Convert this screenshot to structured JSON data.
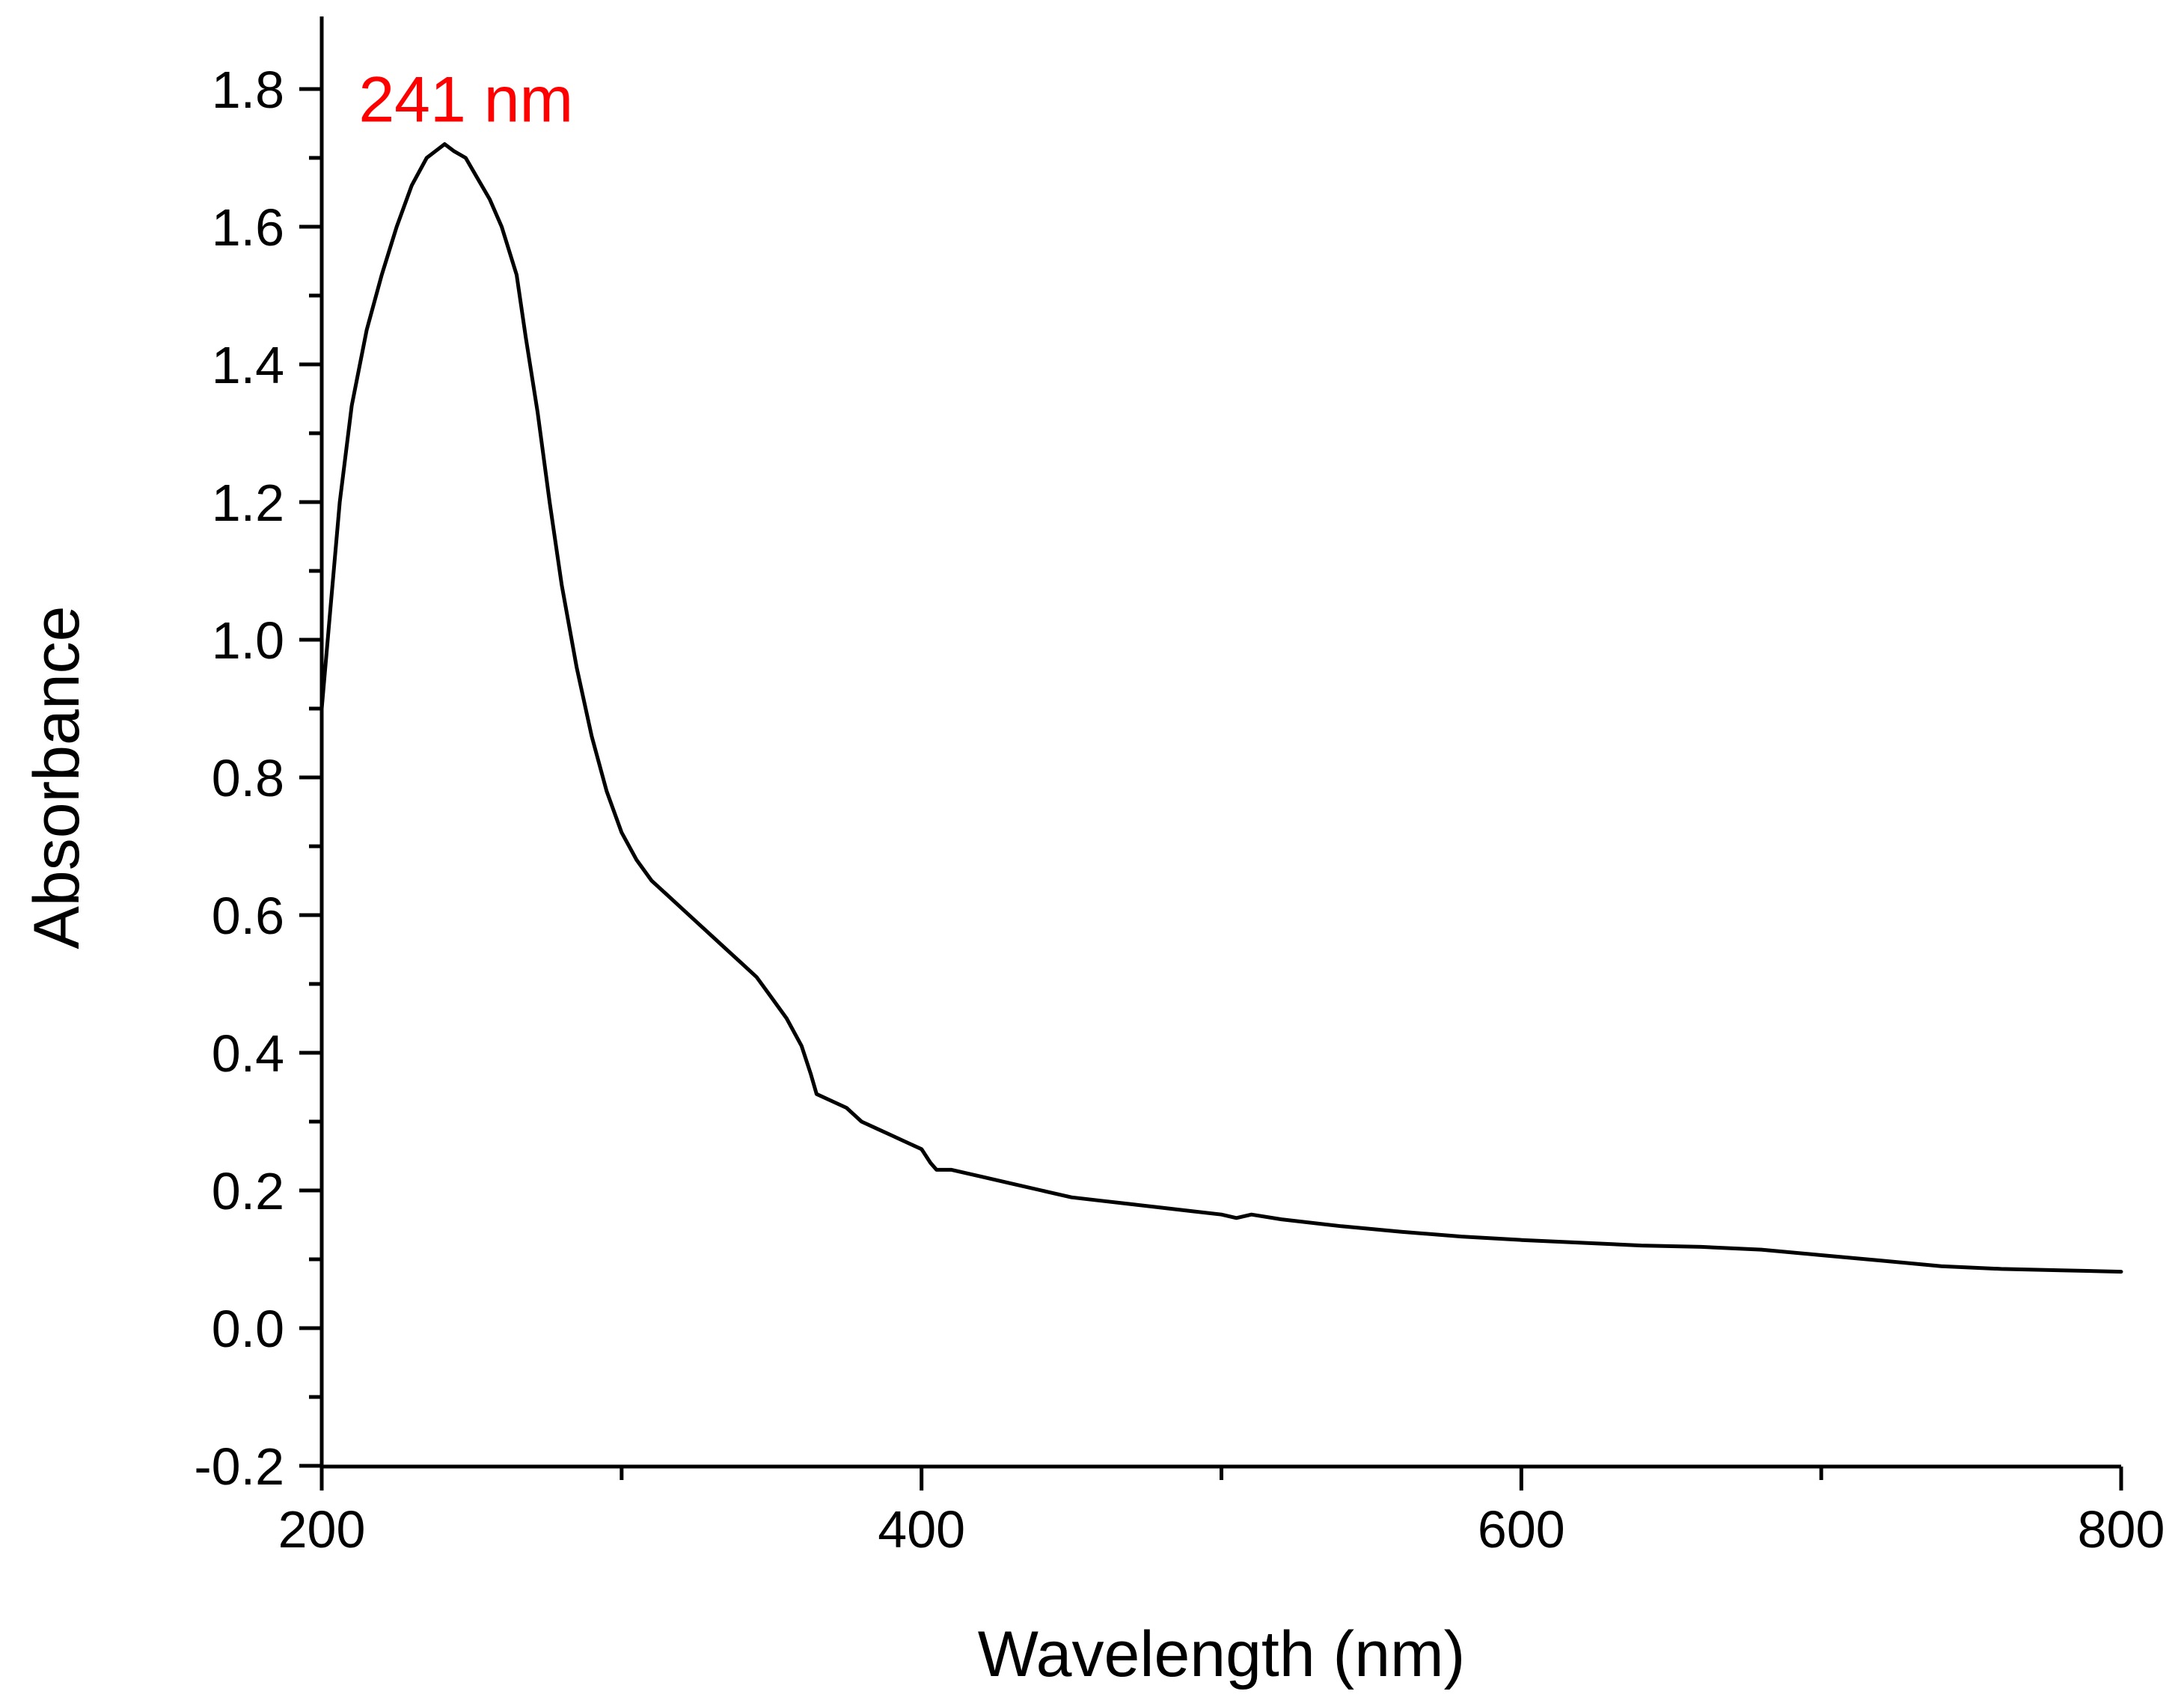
{
  "chart_data": {
    "type": "line",
    "title": "",
    "xlabel": "Wavelength (nm)",
    "ylabel": "Absorbance",
    "xlim": [
      200,
      800
    ],
    "ylim": [
      -0.2,
      1.9
    ],
    "x_ticks": [
      200,
      400,
      600,
      800
    ],
    "x_tick_labels": [
      "200",
      "400",
      "600",
      "800"
    ],
    "x_minor_ticks": [
      300,
      500,
      700
    ],
    "y_ticks": [
      -0.2,
      0.0,
      0.2,
      0.4,
      0.6,
      0.8,
      1.0,
      1.2,
      1.4,
      1.6,
      1.8
    ],
    "y_tick_labels": [
      "-0.2",
      "0.0",
      "0.2",
      "0.4",
      "0.6",
      "0.8",
      "1.0",
      "1.2",
      "1.4",
      "1.6",
      "1.8"
    ],
    "y_minor_ticks": [
      -0.1,
      0.1,
      0.3,
      0.5,
      0.7,
      0.9,
      1.1,
      1.3,
      1.5,
      1.7
    ],
    "grid": false,
    "legend": "none",
    "line_color": "#000000",
    "annotations": [
      {
        "text": "241 nm",
        "x": 241,
        "y": 1.72,
        "color": "#ff0000"
      }
    ],
    "series": [
      {
        "x": [
          200,
          203,
          206,
          210,
          215,
          220,
          225,
          230,
          235,
          238,
          241,
          244,
          248,
          252,
          256,
          260,
          265,
          268,
          272,
          276,
          280,
          285,
          290,
          295,
          300,
          305,
          310,
          315,
          320,
          325,
          330,
          335,
          340,
          345,
          350,
          355,
          360,
          363,
          365,
          370,
          375,
          380,
          385,
          390,
          395,
          400,
          403,
          405,
          410,
          420,
          430,
          440,
          450,
          460,
          470,
          480,
          490,
          500,
          505,
          510,
          520,
          540,
          560,
          580,
          600,
          620,
          640,
          660,
          680,
          700,
          720,
          740,
          760,
          780,
          800
        ],
        "y": [
          0.9,
          1.05,
          1.2,
          1.34,
          1.45,
          1.53,
          1.6,
          1.66,
          1.7,
          1.71,
          1.72,
          1.71,
          1.7,
          1.67,
          1.64,
          1.6,
          1.53,
          1.44,
          1.33,
          1.2,
          1.08,
          0.96,
          0.86,
          0.78,
          0.72,
          0.68,
          0.65,
          0.63,
          0.61,
          0.59,
          0.57,
          0.55,
          0.53,
          0.51,
          0.48,
          0.45,
          0.41,
          0.37,
          0.34,
          0.33,
          0.32,
          0.3,
          0.29,
          0.28,
          0.27,
          0.26,
          0.24,
          0.23,
          0.23,
          0.22,
          0.21,
          0.2,
          0.19,
          0.185,
          0.18,
          0.175,
          0.17,
          0.165,
          0.16,
          0.165,
          0.158,
          0.148,
          0.14,
          0.133,
          0.128,
          0.124,
          0.12,
          0.118,
          0.114,
          0.106,
          0.098,
          0.09,
          0.086,
          0.084,
          0.082
        ]
      }
    ]
  }
}
